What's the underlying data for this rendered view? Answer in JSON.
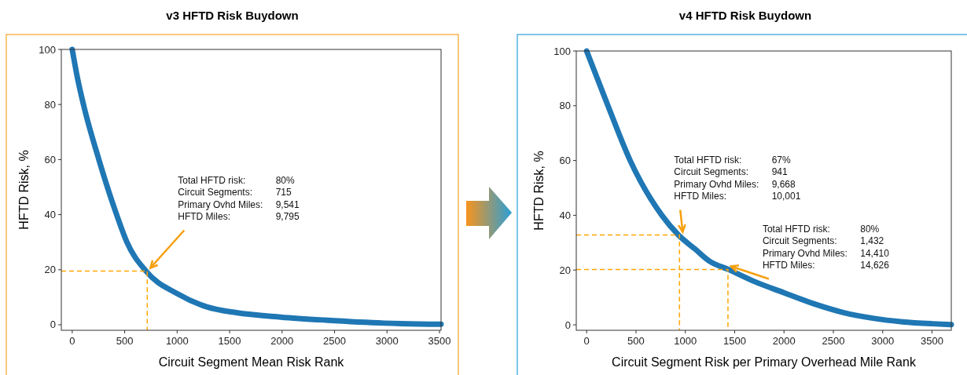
{
  "chart_data": [
    {
      "type": "line",
      "title": "v3 HFTD Risk Buydown",
      "xlabel": "Circuit Segment Mean Risk Rank",
      "ylabel": "HFTD Risk, %",
      "xlim": [
        -104,
        3515
      ],
      "xticks": [
        0,
        500,
        1000,
        1500,
        2000,
        2500,
        3000,
        3500
      ],
      "ylim": [
        -2,
        100
      ],
      "yticks": [
        0,
        20,
        40,
        60,
        80,
        100
      ],
      "grid": false,
      "marker": "none",
      "series": [
        {
          "color": "#1f77b4",
          "line_style": "solid",
          "x": [
            0,
            48,
            107,
            254,
            423,
            521,
            705,
            1000,
            1282,
            1564,
            1987,
            2410,
            2973,
            3515
          ],
          "values": [
            100,
            90,
            80,
            60,
            40,
            30,
            19.4,
            11.3,
            6.5,
            4.4,
            2.8,
            1.7,
            0.6,
            0.2
          ]
        },
        {
          "color": "#ffa500",
          "line_style": "dashed",
          "x": [
            -104,
            715,
            715
          ],
          "values": [
            19.5,
            19.5,
            -2
          ]
        }
      ],
      "annotations": [
        "Total HFTD risk: 80%",
        "Circuit Segments: 715",
        "Primary Ovhd Miles: 9,541",
        "HFTD Miles: 9,795"
      ]
    },
    {
      "type": "line",
      "title": "v4 HFTD Risk Buydown",
      "xlabel": "Circuit Segment Risk per Primary Overhead Mile Rank",
      "ylabel": "HFTD Risk, %",
      "xlim": [
        -105,
        3695
      ],
      "xticks": [
        0,
        500,
        1000,
        1500,
        2000,
        2500,
        3000,
        3500
      ],
      "ylim": [
        -2,
        100
      ],
      "yticks": [
        0,
        20,
        40,
        60,
        80,
        100
      ],
      "grid": false,
      "marker": "none",
      "series": [
        {
          "color": "#1f77b4",
          "line_style": "solid",
          "x": [
            0,
            216,
            441,
            762,
            930,
            1101,
            1251,
            1431,
            1701,
            2001,
            2301,
            2600,
            2901,
            3200,
            3500,
            3695
          ],
          "values": [
            100,
            80,
            60,
            40,
            32.8,
            27.6,
            23.1,
            20.3,
            15.8,
            11.7,
            7.7,
            4.5,
            2.4,
            1.1,
            0.4,
            0.1
          ]
        },
        {
          "color": "#ffa500",
          "line_style": "dashed",
          "x": [
            -105,
            941,
            941
          ],
          "values": [
            32.8,
            32.8,
            -2
          ]
        },
        {
          "color": "#ffa500",
          "line_style": "dashed",
          "x": [
            -105,
            1432,
            1432
          ],
          "values": [
            20.2,
            20.2,
            -2
          ]
        }
      ],
      "annotations": [
        "Total HFTD risk: 67%",
        "Circuit Segments: 941",
        "Primary Ovhd Miles: 9,668",
        "HFTD Miles: 10,001",
        "Total HFTD risk: 80%",
        "Circuit Segments: 1,432",
        "Primary Ovhd Miles: 14,410",
        "HFTD Miles: 14,626"
      ]
    }
  ]
}
